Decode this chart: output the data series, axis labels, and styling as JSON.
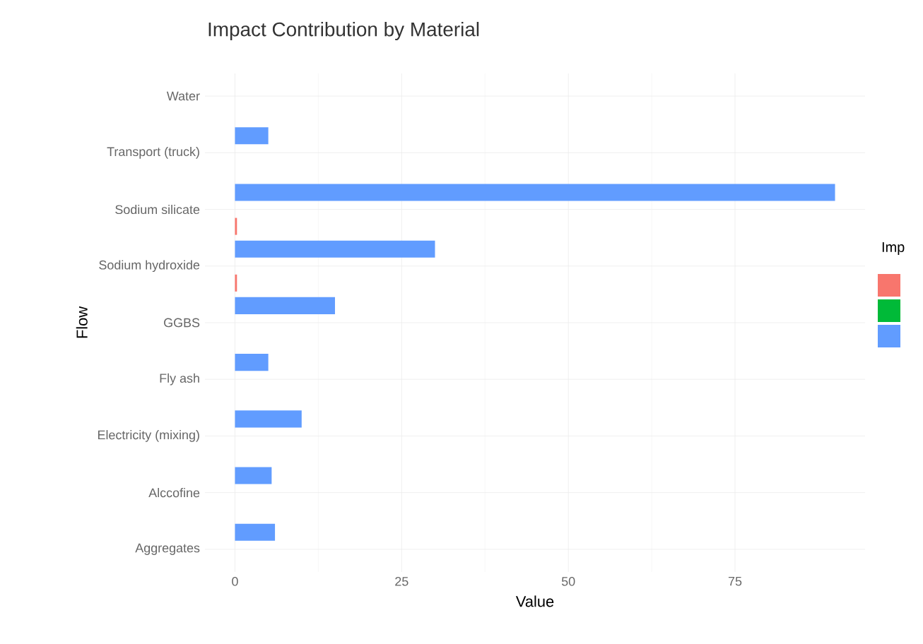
{
  "chart_data": {
    "type": "bar",
    "orientation": "horizontal",
    "title": "Impact Contribution by Material",
    "xlabel": "Value",
    "ylabel": "Flow",
    "legend_title": "Imp",
    "grid": true,
    "categories": [
      "Water",
      "Transport (truck)",
      "Sodium silicate",
      "Sodium hydroxide",
      "GGBS",
      "Fly ash",
      "Electricity (mixing)",
      "Alccofine",
      "Aggregates"
    ],
    "series": [
      {
        "color": "#f8766d",
        "values": [
          0,
          0,
          0.3,
          0.3,
          0,
          0,
          0,
          0,
          0
        ]
      },
      {
        "color": "#00ba38",
        "values": [
          0,
          0,
          0,
          0,
          0,
          0,
          0,
          0,
          0
        ]
      },
      {
        "color": "#619cff",
        "values": [
          0,
          5,
          90,
          30,
          15,
          5,
          10,
          5.5,
          6
        ]
      }
    ],
    "xlim": [
      -4.5,
      94.5
    ],
    "xticks": [
      0,
      25,
      50,
      75
    ]
  }
}
